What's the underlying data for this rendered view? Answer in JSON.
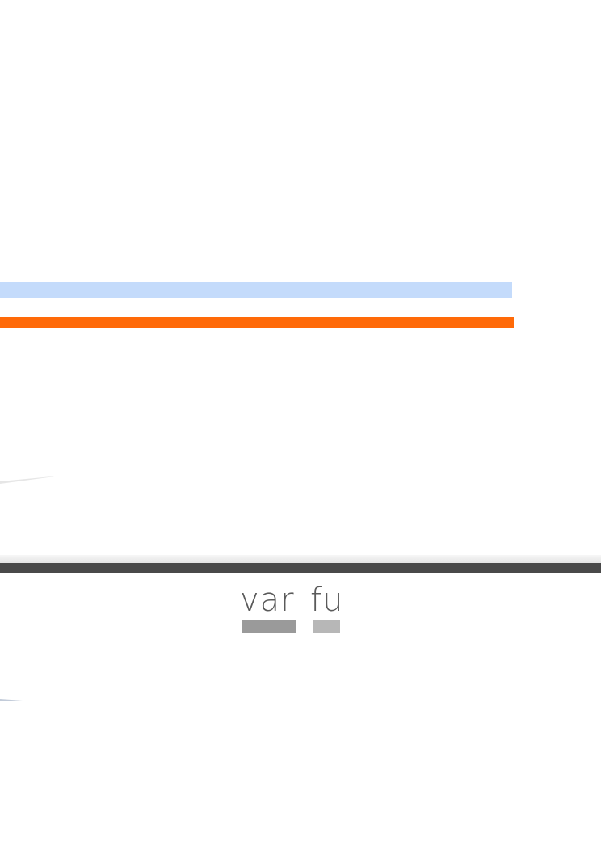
{
  "logo": {
    "word_left": "var",
    "word_right": "fu",
    "colors": {
      "text": "#5a5a5a",
      "block_left": "#9a9a9a",
      "block_right": "#b7b7b7"
    }
  },
  "colors": {
    "highlight_bar": "#c4dbfb",
    "accent_bar": "#ff6a08",
    "toolbar_strip": "#494949"
  }
}
